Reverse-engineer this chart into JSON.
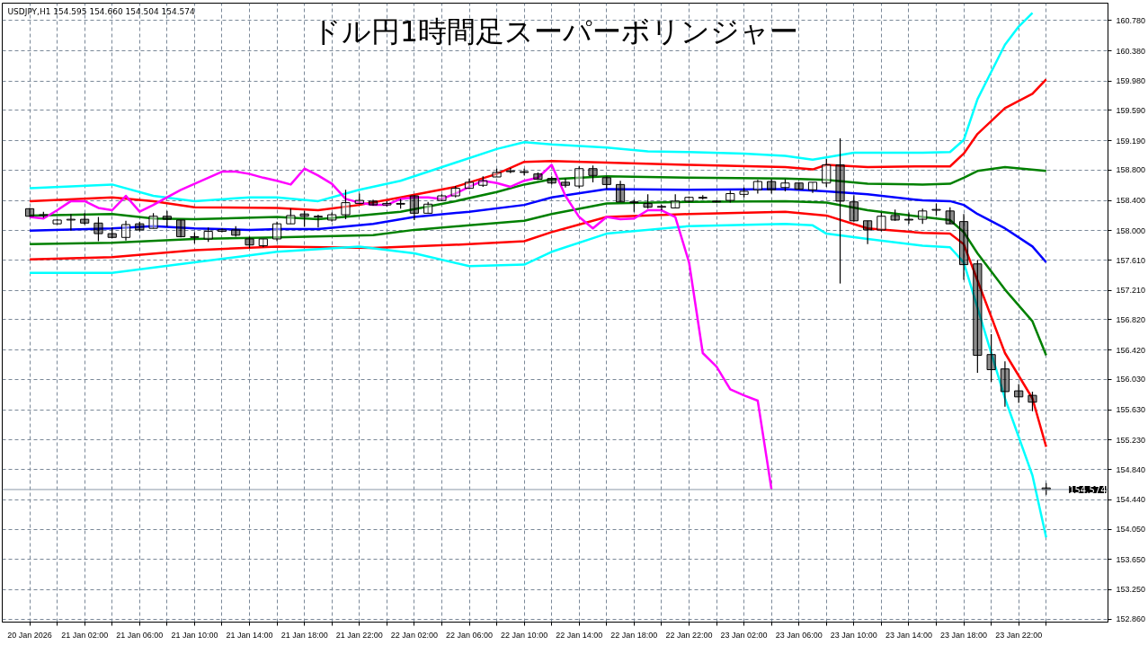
{
  "chart_data": {
    "type": "candlestick",
    "title": "ドル円1時間足スーパーボリンジャー",
    "annotations": [
      "USDJPY,H1  154.595 154.660 154.504 154.574"
    ],
    "x": [
      "2026-01-20T22:00",
      "2026-01-20T23:00",
      "2026-01-21T00:00",
      "2026-01-21T01:00",
      "2026-01-21T02:00",
      "2026-01-21T03:00",
      "2026-01-21T04:00",
      "2026-01-21T05:00",
      "2026-01-21T06:00",
      "2026-01-21T07:00",
      "2026-01-21T08:00",
      "2026-01-21T09:00",
      "2026-01-21T10:00",
      "2026-01-21T11:00",
      "2026-01-21T12:00",
      "2026-01-21T13:00",
      "2026-01-21T14:00",
      "2026-01-21T15:00",
      "2026-01-21T16:00",
      "2026-01-21T17:00",
      "2026-01-21T18:00",
      "2026-01-21T19:00",
      "2026-01-21T20:00",
      "2026-01-21T21:00",
      "2026-01-21T22:00",
      "2026-01-21T23:00",
      "2026-01-22T00:00",
      "2026-01-22T01:00",
      "2026-01-22T02:00",
      "2026-01-22T03:00",
      "2026-01-22T04:00",
      "2026-01-22T05:00",
      "2026-01-22T06:00",
      "2026-01-22T07:00",
      "2026-01-22T08:00",
      "2026-01-22T09:00",
      "2026-01-22T10:00",
      "2026-01-22T11:00",
      "2026-01-22T12:00",
      "2026-01-22T13:00",
      "2026-01-22T14:00",
      "2026-01-22T15:00",
      "2026-01-22T16:00",
      "2026-01-22T17:00",
      "2026-01-22T18:00",
      "2026-01-22T19:00",
      "2026-01-22T20:00",
      "2026-01-22T21:00",
      "2026-01-22T22:00",
      "2026-01-22T23:00",
      "2026-01-23T00:00",
      "2026-01-23T01:00",
      "2026-01-23T02:00",
      "2026-01-23T03:00",
      "2026-01-23T04:00",
      "2026-01-23T05:00",
      "2026-01-23T06:00",
      "2026-01-23T07:00",
      "2026-01-23T08:00",
      "2026-01-23T09:00",
      "2026-01-23T10:00",
      "2026-01-23T11:00",
      "2026-01-23T12:00",
      "2026-01-23T13:00",
      "2026-01-23T14:00",
      "2026-01-23T15:00",
      "2026-01-23T16:00",
      "2026-01-23T17:00",
      "2026-01-23T18:00",
      "2026-01-23T19:00",
      "2026-01-23T20:00",
      "2026-01-23T21:00",
      "2026-01-23T22:00",
      "2026-01-23T23:00",
      "2026-01-24T00:00"
    ],
    "ohlc": [
      [
        158.29,
        158.3,
        158.18,
        158.19
      ],
      [
        158.2,
        158.25,
        158.17,
        158.21
      ],
      [
        158.09,
        158.15,
        158.08,
        158.14
      ],
      [
        158.14,
        158.22,
        158.0,
        158.15
      ],
      [
        158.15,
        158.23,
        158.08,
        158.1
      ],
      [
        158.1,
        158.18,
        157.86,
        157.96
      ],
      [
        157.96,
        158.04,
        157.9,
        157.91
      ],
      [
        157.91,
        158.13,
        157.87,
        158.08
      ],
      [
        158.09,
        158.12,
        157.99,
        158.01
      ],
      [
        158.03,
        158.23,
        158.03,
        158.19
      ],
      [
        158.19,
        158.26,
        158.05,
        158.15
      ],
      [
        158.14,
        158.14,
        157.91,
        157.92
      ],
      [
        157.91,
        157.98,
        157.83,
        157.92
      ],
      [
        157.89,
        158.04,
        157.85,
        157.99
      ],
      [
        157.99,
        158.03,
        157.98,
        158.01
      ],
      [
        158.01,
        158.06,
        157.92,
        157.94
      ],
      [
        157.89,
        157.92,
        157.77,
        157.81
      ],
      [
        157.8,
        157.89,
        157.78,
        157.89
      ],
      [
        157.89,
        158.12,
        157.86,
        158.09
      ],
      [
        158.09,
        158.29,
        158.09,
        158.2
      ],
      [
        158.22,
        158.26,
        158.05,
        158.19
      ],
      [
        158.18,
        158.21,
        158.04,
        158.19
      ],
      [
        158.14,
        158.24,
        158.12,
        158.21
      ],
      [
        158.21,
        158.54,
        158.15,
        158.37
      ],
      [
        158.36,
        158.49,
        158.35,
        158.4
      ],
      [
        158.39,
        158.41,
        158.33,
        158.34
      ],
      [
        158.34,
        158.39,
        158.32,
        158.36
      ],
      [
        158.36,
        158.42,
        158.29,
        158.35
      ],
      [
        158.46,
        158.47,
        158.14,
        158.23
      ],
      [
        158.23,
        158.38,
        158.23,
        158.35
      ],
      [
        158.4,
        158.48,
        158.39,
        158.46
      ],
      [
        158.46,
        158.59,
        158.44,
        158.56
      ],
      [
        158.56,
        158.69,
        158.55,
        158.64
      ],
      [
        158.6,
        158.72,
        158.58,
        158.66
      ],
      [
        158.71,
        158.82,
        158.71,
        158.77
      ],
      [
        158.78,
        158.83,
        158.76,
        158.79
      ],
      [
        158.78,
        158.82,
        158.73,
        158.77
      ],
      [
        158.75,
        158.77,
        158.67,
        158.68
      ],
      [
        158.69,
        158.72,
        158.61,
        158.63
      ],
      [
        158.64,
        158.69,
        158.57,
        158.6
      ],
      [
        158.59,
        158.85,
        158.56,
        158.82
      ],
      [
        158.82,
        158.86,
        158.64,
        158.73
      ],
      [
        158.7,
        158.72,
        158.55,
        158.61
      ],
      [
        158.61,
        158.66,
        158.38,
        158.38
      ],
      [
        158.38,
        158.41,
        158.25,
        158.37
      ],
      [
        158.36,
        158.48,
        158.29,
        158.31
      ],
      [
        158.31,
        158.34,
        158.27,
        158.32
      ],
      [
        158.3,
        158.48,
        158.3,
        158.39
      ],
      [
        158.39,
        158.45,
        158.37,
        158.44
      ],
      [
        158.43,
        158.47,
        158.41,
        158.44
      ],
      [
        158.39,
        158.4,
        158.37,
        158.38
      ],
      [
        158.4,
        158.53,
        158.37,
        158.49
      ],
      [
        158.48,
        158.57,
        158.44,
        158.52
      ],
      [
        158.54,
        158.67,
        158.49,
        158.65
      ],
      [
        158.65,
        158.68,
        158.49,
        158.54
      ],
      [
        158.57,
        158.68,
        158.52,
        158.63
      ],
      [
        158.63,
        158.64,
        158.54,
        158.55
      ],
      [
        158.54,
        158.64,
        158.5,
        158.64
      ],
      [
        158.63,
        158.95,
        158.58,
        158.87
      ],
      [
        158.87,
        159.22,
        157.3,
        158.39
      ],
      [
        158.38,
        158.47,
        158.12,
        158.13
      ],
      [
        158.13,
        158.13,
        157.82,
        158.01
      ],
      [
        158.01,
        158.24,
        157.99,
        158.19
      ],
      [
        158.2,
        158.28,
        158.13,
        158.14
      ],
      [
        158.15,
        158.24,
        158.09,
        158.14
      ],
      [
        158.15,
        158.29,
        158.09,
        158.26
      ],
      [
        158.27,
        158.36,
        158.2,
        158.28
      ],
      [
        158.26,
        158.31,
        158.09,
        158.09
      ],
      [
        158.12,
        158.22,
        157.35,
        157.55
      ],
      [
        157.56,
        157.61,
        156.12,
        156.35
      ],
      [
        156.36,
        156.63,
        156.0,
        156.16
      ],
      [
        156.17,
        156.27,
        155.67,
        155.87
      ],
      [
        155.88,
        155.97,
        155.72,
        155.8
      ],
      [
        155.82,
        155.87,
        155.61,
        155.73
      ],
      [
        154.595,
        154.66,
        154.504,
        154.574
      ]
    ],
    "series": [
      {
        "type": "line",
        "color": "#00ffff",
        "x": [
          "2026-01-20T22:00",
          "2026-01-21T04:00",
          "2026-01-21T07:00",
          "2026-01-21T10:00",
          "2026-01-21T14:00",
          "2026-01-21T16:00",
          "2026-01-21T19:00",
          "2026-01-21T22:00",
          "2026-01-22T01:00",
          "2026-01-22T05:00",
          "2026-01-22T08:00",
          "2026-01-22T10:00",
          "2026-01-22T12:00",
          "2026-01-22T16:00",
          "2026-01-22T19:00",
          "2026-01-22T22:00",
          "2026-01-23T02:00",
          "2026-01-23T05:00",
          "2026-01-23T07:00",
          "2026-01-23T10:00",
          "2026-01-23T15:00",
          "2026-01-23T17:00",
          "2026-01-23T18:00",
          "2026-01-23T19:00",
          "2026-01-23T20:00",
          "2026-01-23T21:00",
          "2026-01-23T22:00",
          "2026-01-23T23:00"
        ],
        "values": [
          158.56,
          158.61,
          158.46,
          158.39,
          158.44,
          158.44,
          158.39,
          158.54,
          158.66,
          158.9,
          159.08,
          159.17,
          159.14,
          159.1,
          159.05,
          159.04,
          159.02,
          158.99,
          158.94,
          159.03,
          159.03,
          159.04,
          159.2,
          159.74,
          160.1,
          160.46,
          160.7,
          160.88
        ]
      },
      {
        "type": "line",
        "color": "#ff0000",
        "x": [
          "2026-01-20T22:00",
          "2026-01-21T04:00",
          "2026-01-21T07:00",
          "2026-01-21T10:00",
          "2026-01-21T16:00",
          "2026-01-21T19:00",
          "2026-01-21T22:00",
          "2026-01-22T01:00",
          "2026-01-22T05:00",
          "2026-01-22T08:00",
          "2026-01-22T10:00",
          "2026-01-22T12:00",
          "2026-01-22T16:00",
          "2026-01-22T22:00",
          "2026-01-23T05:00",
          "2026-01-23T07:00",
          "2026-01-23T08:00",
          "2026-01-23T11:00",
          "2026-01-23T15:00",
          "2026-01-23T17:00",
          "2026-01-23T18:00",
          "2026-01-23T19:00",
          "2026-01-23T21:00",
          "2026-01-23T23:00",
          "2026-01-24T00:00"
        ],
        "values": [
          158.39,
          158.44,
          158.39,
          158.31,
          158.3,
          158.27,
          158.34,
          158.44,
          158.58,
          158.75,
          158.91,
          158.92,
          158.9,
          158.87,
          158.84,
          158.81,
          158.87,
          158.84,
          158.85,
          158.85,
          159.02,
          159.28,
          159.62,
          159.81,
          160.0
        ]
      },
      {
        "type": "line",
        "color": "#008000",
        "x": [
          "2026-01-20T22:00",
          "2026-01-21T04:00",
          "2026-01-21T07:00",
          "2026-01-21T10:00",
          "2026-01-21T16:00",
          "2026-01-21T19:00",
          "2026-01-21T22:00",
          "2026-01-22T01:00",
          "2026-01-22T05:00",
          "2026-01-22T08:00",
          "2026-01-22T10:00",
          "2026-01-22T12:00",
          "2026-01-22T16:00",
          "2026-01-22T22:00",
          "2026-01-23T05:00",
          "2026-01-23T08:00",
          "2026-01-23T11:00",
          "2026-01-23T15:00",
          "2026-01-23T17:00",
          "2026-01-23T18:00",
          "2026-01-23T19:00",
          "2026-01-23T21:00",
          "2026-01-24T00:00"
        ],
        "values": [
          158.2,
          158.22,
          158.16,
          158.15,
          158.18,
          158.15,
          158.2,
          158.25,
          158.39,
          158.51,
          158.61,
          158.68,
          158.72,
          158.7,
          158.69,
          158.67,
          158.62,
          158.61,
          158.62,
          158.7,
          158.79,
          158.84,
          158.79
        ]
      },
      {
        "type": "line",
        "color": "#0000ff",
        "x": [
          "2026-01-20T22:00",
          "2026-01-21T04:00",
          "2026-01-21T07:00",
          "2026-01-21T10:00",
          "2026-01-21T14:00",
          "2026-01-21T16:00",
          "2026-01-21T19:00",
          "2026-01-21T23:00",
          "2026-01-22T02:00",
          "2026-01-22T06:00",
          "2026-01-22T10:00",
          "2026-01-22T12:00",
          "2026-01-22T16:00",
          "2026-01-22T22:00",
          "2026-01-23T05:00",
          "2026-01-23T08:00",
          "2026-01-23T11:00",
          "2026-01-23T15:00",
          "2026-01-23T17:00",
          "2026-01-23T18:00",
          "2026-01-23T19:00",
          "2026-01-23T21:00",
          "2026-01-23T23:00",
          "2026-01-24T00:00"
        ],
        "values": [
          158.0,
          158.03,
          158.06,
          158.03,
          158.01,
          158.02,
          158.02,
          158.09,
          158.18,
          158.25,
          158.34,
          158.44,
          158.55,
          158.54,
          158.55,
          158.52,
          158.48,
          158.4,
          158.39,
          158.34,
          158.22,
          158.03,
          157.79,
          157.58
        ]
      },
      {
        "type": "line",
        "color": "#008000",
        "x": [
          "2026-01-20T22:00",
          "2026-01-21T04:00",
          "2026-01-21T10:00",
          "2026-01-21T16:00",
          "2026-01-21T23:00",
          "2026-01-22T02:00",
          "2026-01-22T06:00",
          "2026-01-22T10:00",
          "2026-01-22T12:00",
          "2026-01-22T16:00",
          "2026-01-22T22:00",
          "2026-01-23T05:00",
          "2026-01-23T08:00",
          "2026-01-23T11:00",
          "2026-01-23T15:00",
          "2026-01-23T17:00",
          "2026-01-23T18:00",
          "2026-01-23T19:00",
          "2026-01-23T21:00",
          "2026-01-23T23:00",
          "2026-01-24T00:00"
        ],
        "values": [
          157.82,
          157.84,
          157.89,
          157.91,
          157.94,
          158.01,
          158.07,
          158.13,
          158.22,
          158.36,
          158.38,
          158.39,
          158.37,
          158.27,
          158.18,
          158.14,
          157.98,
          157.7,
          157.22,
          156.8,
          156.35
        ]
      },
      {
        "type": "line",
        "color": "#ff0000",
        "x": [
          "2026-01-20T22:00",
          "2026-01-21T04:00",
          "2026-01-21T10:00",
          "2026-01-21T16:00",
          "2026-01-21T23:00",
          "2026-01-22T06:00",
          "2026-01-22T10:00",
          "2026-01-22T12:00",
          "2026-01-22T16:00",
          "2026-01-22T22:00",
          "2026-01-23T05:00",
          "2026-01-23T08:00",
          "2026-01-23T11:00",
          "2026-01-23T15:00",
          "2026-01-23T17:00",
          "2026-01-23T18:00",
          "2026-01-23T19:00",
          "2026-01-23T21:00",
          "2026-01-23T23:00",
          "2026-01-24T00:00"
        ],
        "values": [
          157.62,
          157.65,
          157.74,
          157.79,
          157.77,
          157.82,
          157.86,
          157.98,
          158.18,
          158.22,
          158.25,
          158.2,
          158.03,
          157.97,
          157.96,
          157.82,
          157.34,
          156.38,
          155.78,
          155.14
        ]
      },
      {
        "type": "line",
        "color": "#00ffff",
        "x": [
          "2026-01-20T22:00",
          "2026-01-21T04:00",
          "2026-01-21T10:00",
          "2026-01-21T13:00",
          "2026-01-21T16:00",
          "2026-01-21T22:00",
          "2026-01-22T02:00",
          "2026-01-22T06:00",
          "2026-01-22T10:00",
          "2026-01-22T12:00",
          "2026-01-22T16:00",
          "2026-01-22T22:00",
          "2026-01-23T05:00",
          "2026-01-23T07:00",
          "2026-01-23T08:00",
          "2026-01-23T11:00",
          "2026-01-23T15:00",
          "2026-01-23T17:00",
          "2026-01-23T18:00",
          "2026-01-23T19:00",
          "2026-01-23T21:00",
          "2026-01-23T23:00",
          "2026-01-24T00:00"
        ],
        "values": [
          157.44,
          157.44,
          157.58,
          157.65,
          157.72,
          157.79,
          157.7,
          157.53,
          157.55,
          157.72,
          157.96,
          158.06,
          158.09,
          158.07,
          157.96,
          157.89,
          157.8,
          157.78,
          157.58,
          156.98,
          155.78,
          154.76,
          153.94
        ]
      },
      {
        "type": "line",
        "color": "#ff00ff",
        "x": [
          "2026-01-20T22:00",
          "2026-01-20T23:00",
          "2026-01-21T00:00",
          "2026-01-21T01:00",
          "2026-01-21T02:00",
          "2026-01-21T03:00",
          "2026-01-21T04:00",
          "2026-01-21T05:00",
          "2026-01-21T06:00",
          "2026-01-21T07:00",
          "2026-01-21T08:00",
          "2026-01-21T09:00",
          "2026-01-21T10:00",
          "2026-01-21T11:00",
          "2026-01-21T12:00",
          "2026-01-21T13:00",
          "2026-01-21T14:00",
          "2026-01-21T15:00",
          "2026-01-21T16:00",
          "2026-01-21T17:00",
          "2026-01-21T18:00",
          "2026-01-21T19:00",
          "2026-01-21T20:00",
          "2026-01-21T21:00",
          "2026-01-21T22:00",
          "2026-01-21T23:00",
          "2026-01-22T00:00",
          "2026-01-22T01:00",
          "2026-01-22T02:00",
          "2026-01-22T03:00",
          "2026-01-22T04:00",
          "2026-01-22T05:00",
          "2026-01-22T06:00",
          "2026-01-22T07:00",
          "2026-01-22T08:00",
          "2026-01-22T09:00",
          "2026-01-22T10:00",
          "2026-01-22T11:00",
          "2026-01-22T12:00",
          "2026-01-22T13:00",
          "2026-01-22T14:00",
          "2026-01-22T15:00",
          "2026-01-22T16:00",
          "2026-01-22T17:00",
          "2026-01-22T18:00",
          "2026-01-22T19:00",
          "2026-01-22T20:00",
          "2026-01-22T21:00",
          "2026-01-22T22:00",
          "2026-01-22T23:00",
          "2026-01-23T00:00",
          "2026-01-23T01:00",
          "2026-01-23T02:00",
          "2026-01-23T03:00",
          "2026-01-23T04:00"
        ],
        "values": [
          158.18,
          158.16,
          158.27,
          158.39,
          158.39,
          158.3,
          158.27,
          158.46,
          158.25,
          158.34,
          158.44,
          158.54,
          158.62,
          158.7,
          158.78,
          158.78,
          158.75,
          158.7,
          158.66,
          158.61,
          158.82,
          158.73,
          158.62,
          158.42,
          158.37,
          158.34,
          158.34,
          158.42,
          158.44,
          158.44,
          158.42,
          158.49,
          158.58,
          158.66,
          158.63,
          158.58,
          158.66,
          158.7,
          158.87,
          158.46,
          158.18,
          158.03,
          158.18,
          158.15,
          158.16,
          158.27,
          158.27,
          158.18,
          157.58,
          156.38,
          156.2,
          155.9,
          155.82,
          155.75,
          154.58
        ]
      }
    ],
    "ref_lines": [
      {
        "axis": "y",
        "value": 154.574,
        "label": "154.574",
        "color": "#8c9aa8"
      }
    ],
    "xlim": [
      "2026-01-20T20:00",
      "2026-01-24T04:30"
    ],
    "ylim": [
      152.82,
      161.01
    ],
    "yticks": [
      {
        "value": 152.86,
        "label": "152.860"
      },
      {
        "value": 153.25,
        "label": "153.250"
      },
      {
        "value": 153.65,
        "label": "153.650"
      },
      {
        "value": 154.05,
        "label": "154.050"
      },
      {
        "value": 154.44,
        "label": "154.440"
      },
      {
        "value": 154.84,
        "label": "154.840"
      },
      {
        "value": 155.23,
        "label": "155.230"
      },
      {
        "value": 155.63,
        "label": "155.630"
      },
      {
        "value": 156.03,
        "label": "156.030"
      },
      {
        "value": 156.42,
        "label": "156.420"
      },
      {
        "value": 156.82,
        "label": "156.820"
      },
      {
        "value": 157.21,
        "label": "157.210"
      },
      {
        "value": 157.61,
        "label": "157.610"
      },
      {
        "value": 158.0,
        "label": "158.000"
      },
      {
        "value": 158.4,
        "label": "158.400"
      },
      {
        "value": 158.8,
        "label": "158.800"
      },
      {
        "value": 159.19,
        "label": "159.190"
      },
      {
        "value": 159.59,
        "label": "159.590"
      },
      {
        "value": 159.98,
        "label": "159.980"
      },
      {
        "value": 160.38,
        "label": "160.380"
      },
      {
        "value": 160.78,
        "label": "160.780"
      }
    ],
    "xticks": [
      {
        "value": "2026-01-20T22:00",
        "label": "20 Jan 2026"
      },
      {
        "value": "2026-01-21T00:00",
        "label": null
      },
      {
        "value": "2026-01-21T02:00",
        "label": "21 Jan 02:00"
      },
      {
        "value": "2026-01-21T04:00",
        "label": null
      },
      {
        "value": "2026-01-21T06:00",
        "label": "21 Jan 06:00"
      },
      {
        "value": "2026-01-21T08:00",
        "label": null
      },
      {
        "value": "2026-01-21T10:00",
        "label": "21 Jan 10:00"
      },
      {
        "value": "2026-01-21T12:00",
        "label": null
      },
      {
        "value": "2026-01-21T14:00",
        "label": "21 Jan 14:00"
      },
      {
        "value": "2026-01-21T16:00",
        "label": null
      },
      {
        "value": "2026-01-21T18:00",
        "label": "21 Jan 18:00"
      },
      {
        "value": "2026-01-21T20:00",
        "label": null
      },
      {
        "value": "2026-01-21T22:00",
        "label": "21 Jan 22:00"
      },
      {
        "value": "2026-01-22T00:00",
        "label": null
      },
      {
        "value": "2026-01-22T02:00",
        "label": "22 Jan 02:00"
      },
      {
        "value": "2026-01-22T04:00",
        "label": null
      },
      {
        "value": "2026-01-22T06:00",
        "label": "22 Jan 06:00"
      },
      {
        "value": "2026-01-22T08:00",
        "label": null
      },
      {
        "value": "2026-01-22T10:00",
        "label": "22 Jan 10:00"
      },
      {
        "value": "2026-01-22T12:00",
        "label": null
      },
      {
        "value": "2026-01-22T14:00",
        "label": "22 Jan 14:00"
      },
      {
        "value": "2026-01-22T16:00",
        "label": null
      },
      {
        "value": "2026-01-22T18:00",
        "label": "22 Jan 18:00"
      },
      {
        "value": "2026-01-22T20:00",
        "label": null
      },
      {
        "value": "2026-01-22T22:00",
        "label": "22 Jan 22:00"
      },
      {
        "value": "2026-01-23T00:00",
        "label": null
      },
      {
        "value": "2026-01-23T02:00",
        "label": "23 Jan 02:00"
      },
      {
        "value": "2026-01-23T04:00",
        "label": null
      },
      {
        "value": "2026-01-23T06:00",
        "label": "23 Jan 06:00"
      },
      {
        "value": "2026-01-23T08:00",
        "label": null
      },
      {
        "value": "2026-01-23T10:00",
        "label": "23 Jan 10:00"
      },
      {
        "value": "2026-01-23T12:00",
        "label": null
      },
      {
        "value": "2026-01-23T14:00",
        "label": "23 Jan 14:00"
      },
      {
        "value": "2026-01-23T16:00",
        "label": null
      },
      {
        "value": "2026-01-23T18:00",
        "label": "23 Jan 18:00"
      },
      {
        "value": "2026-01-23T20:00",
        "label": null
      },
      {
        "value": "2026-01-23T22:00",
        "label": "23 Jan 22:00"
      },
      {
        "value": "2026-01-24T00:00",
        "label": null
      }
    ],
    "grid": true
  }
}
